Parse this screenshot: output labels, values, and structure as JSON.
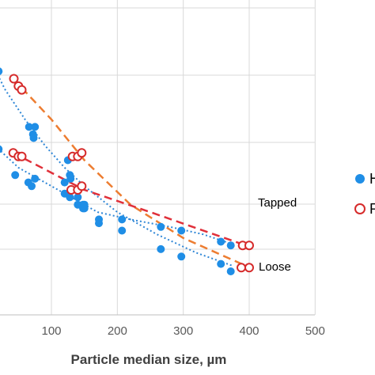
{
  "chart_data": {
    "type": "scatter",
    "xlabel": "Particle median size, µm",
    "ylabel": "",
    "xlim": [
      0,
      500
    ],
    "xticks": [
      100,
      200,
      300,
      400,
      500
    ],
    "grid": true,
    "legend_position": "right",
    "legend_labels": [
      "H",
      "R"
    ],
    "annotations": [
      "Tapped",
      "Loose"
    ],
    "series": [
      {
        "name": "H",
        "marker": "filled-circle",
        "color": "#1f8ee6",
        "x": [
          -2,
          20,
          5,
          14,
          66,
          75,
          72,
          73,
          125,
          128,
          129,
          120,
          140,
          148,
          148,
          172,
          207,
          266,
          297,
          357,
          372,
          -2,
          20,
          14,
          45,
          65,
          75,
          70,
          120,
          125,
          128,
          140,
          150,
          150,
          172,
          207,
          266,
          297,
          357,
          372
        ],
        "y": [
          0.9,
          0.81,
          0.77,
          0.76,
          0.66,
          0.66,
          0.64,
          0.63,
          0.57,
          0.53,
          0.52,
          0.51,
          0.47,
          0.45,
          0.44,
          0.4,
          0.38,
          0.33,
          0.31,
          0.29,
          0.27,
          0.69,
          0.6,
          0.55,
          0.53,
          0.51,
          0.52,
          0.5,
          0.48,
          0.48,
          0.47,
          0.45,
          0.44,
          0.45,
          0.41,
          0.41,
          0.39,
          0.38,
          0.35,
          0.34
        ]
      },
      {
        "name": "R",
        "marker": "open-circle",
        "color": "#d62b2b",
        "x": [
          43,
          50,
          55,
          132,
          140,
          146,
          388,
          400,
          42,
          50,
          55,
          130,
          140,
          146,
          390,
          400
        ],
        "y": [
          0.79,
          0.77,
          0.76,
          0.58,
          0.58,
          0.59,
          0.28,
          0.28,
          0.59,
          0.58,
          0.58,
          0.49,
          0.49,
          0.5,
          0.34,
          0.34
        ]
      }
    ]
  }
}
